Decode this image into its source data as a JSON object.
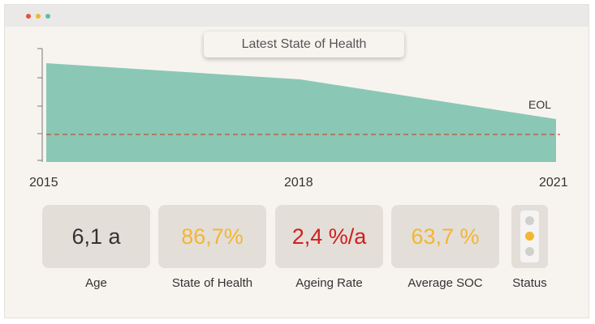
{
  "chart": {
    "title": "Latest State of Health",
    "eol_label": "EOL"
  },
  "chart_data": {
    "type": "area",
    "x": [
      2015,
      2018,
      2021
    ],
    "x_tick_labels": [
      "2015",
      "2018",
      "2021"
    ],
    "annotations": [
      "EOL"
    ],
    "colors": {
      "area": "#8ac8b5",
      "eol_line": "#c0503a"
    }
  },
  "metrics": [
    {
      "value": "6,1 a",
      "label": "Age",
      "color": "#333333"
    },
    {
      "value": "86,7%",
      "label": "State of Health",
      "color": "#f2b632"
    },
    {
      "value": "2,4 %/a",
      "label": "Ageing Rate",
      "color": "#d0201b"
    },
    {
      "value": "63,7 %",
      "label": "Average SOC",
      "color": "#f2b632"
    }
  ],
  "status": {
    "label": "Status",
    "active_light": "yellow",
    "colors": {
      "active": "#f2b632",
      "inactive": "#d2d0cd"
    }
  }
}
